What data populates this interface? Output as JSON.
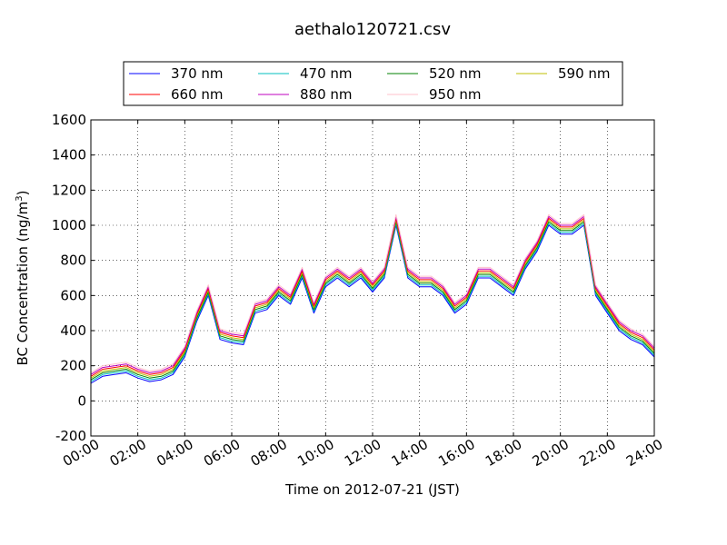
{
  "chart_data": {
    "type": "line",
    "title": "aethalo120721.csv",
    "xlabel": "Time on 2012-07-21 (JST)",
    "ylabel_main": "BC Concentration (ng/m",
    "ylabel_sup": "3",
    "ylabel_end": ")",
    "xlim": [
      0,
      24
    ],
    "ylim": [
      -200,
      1600
    ],
    "x_ticks": [
      0,
      2,
      4,
      6,
      8,
      10,
      12,
      14,
      16,
      18,
      20,
      22,
      24
    ],
    "x_tick_labels": [
      "00:00",
      "02:00",
      "04:00",
      "06:00",
      "08:00",
      "10:00",
      "12:00",
      "14:00",
      "16:00",
      "18:00",
      "20:00",
      "22:00",
      "24:00"
    ],
    "y_ticks": [
      -200,
      0,
      200,
      400,
      600,
      800,
      1000,
      1200,
      1400,
      1600
    ],
    "y_tick_labels": [
      "-200",
      "0",
      "200",
      "400",
      "600",
      "800",
      "1000",
      "1200",
      "1400",
      "1600"
    ],
    "grid": true,
    "legend_position": "top",
    "x_unit": "hour",
    "x": [
      0,
      0.5,
      1,
      1.5,
      2,
      2.5,
      3,
      3.5,
      4,
      4.5,
      5,
      5.5,
      6,
      6.5,
      7,
      7.5,
      8,
      8.5,
      9,
      9.5,
      10,
      10.5,
      11,
      11.5,
      12,
      12.5,
      13,
      13.5,
      14,
      14.5,
      15,
      15.5,
      16,
      16.5,
      17,
      17.5,
      18,
      18.5,
      19,
      19.5,
      20,
      20.5,
      21,
      21.5,
      22,
      22.5,
      23,
      23.5,
      24
    ],
    "series": [
      {
        "name": "370 nm",
        "color": "#0000ff",
        "values": [
          100,
          140,
          150,
          160,
          130,
          110,
          120,
          150,
          250,
          450,
          600,
          350,
          330,
          320,
          500,
          520,
          600,
          550,
          700,
          500,
          650,
          700,
          650,
          700,
          620,
          700,
          1000,
          700,
          650,
          650,
          600,
          500,
          550,
          700,
          700,
          650,
          600,
          750,
          850,
          1000,
          950,
          950,
          1000,
          600,
          500,
          400,
          350,
          320,
          250
        ]
      },
      {
        "name": "470 nm",
        "color": "#00bfbf",
        "values": [
          110,
          150,
          160,
          170,
          140,
          120,
          130,
          160,
          260,
          460,
          610,
          360,
          340,
          330,
          510,
          530,
          610,
          560,
          710,
          510,
          660,
          710,
          660,
          710,
          630,
          710,
          1010,
          710,
          660,
          660,
          610,
          510,
          560,
          710,
          710,
          660,
          610,
          760,
          860,
          1010,
          960,
          960,
          1010,
          610,
          510,
          410,
          360,
          330,
          260
        ]
      },
      {
        "name": "520 nm",
        "color": "#008000",
        "values": [
          120,
          160,
          170,
          180,
          150,
          130,
          140,
          170,
          270,
          470,
          620,
          370,
          350,
          340,
          520,
          540,
          620,
          570,
          720,
          520,
          670,
          720,
          670,
          720,
          640,
          720,
          1020,
          720,
          670,
          670,
          620,
          520,
          570,
          720,
          720,
          670,
          620,
          770,
          870,
          1020,
          970,
          970,
          1020,
          620,
          520,
          420,
          370,
          340,
          270
        ]
      },
      {
        "name": "590 nm",
        "color": "#bfbf00",
        "values": [
          130,
          170,
          180,
          190,
          160,
          140,
          150,
          180,
          280,
          480,
          630,
          380,
          360,
          350,
          530,
          550,
          630,
          580,
          730,
          530,
          680,
          730,
          680,
          730,
          650,
          730,
          1030,
          730,
          680,
          680,
          630,
          530,
          580,
          730,
          730,
          680,
          630,
          780,
          880,
          1030,
          980,
          980,
          1030,
          630,
          530,
          430,
          380,
          350,
          280
        ]
      },
      {
        "name": "660 nm",
        "color": "#ff0000",
        "values": [
          140,
          180,
          190,
          200,
          170,
          150,
          160,
          190,
          290,
          490,
          640,
          390,
          370,
          360,
          540,
          560,
          640,
          590,
          740,
          540,
          690,
          740,
          690,
          740,
          660,
          740,
          1040,
          740,
          690,
          690,
          640,
          540,
          590,
          740,
          740,
          690,
          640,
          790,
          890,
          1040,
          990,
          990,
          1040,
          640,
          540,
          440,
          390,
          360,
          290
        ]
      },
      {
        "name": "880 nm",
        "color": "#bf00bf",
        "values": [
          150,
          190,
          200,
          210,
          180,
          160,
          170,
          200,
          300,
          500,
          650,
          400,
          380,
          370,
          550,
          570,
          650,
          600,
          750,
          550,
          700,
          750,
          700,
          750,
          670,
          750,
          1050,
          750,
          700,
          700,
          650,
          550,
          600,
          750,
          750,
          700,
          650,
          800,
          900,
          1050,
          1000,
          1000,
          1050,
          650,
          550,
          450,
          400,
          370,
          300
        ]
      },
      {
        "name": "950 nm",
        "color": "#ffc0cb",
        "values": [
          160,
          200,
          210,
          220,
          190,
          170,
          180,
          210,
          310,
          510,
          660,
          410,
          390,
          380,
          560,
          580,
          660,
          610,
          760,
          560,
          710,
          760,
          710,
          760,
          680,
          760,
          1060,
          760,
          710,
          710,
          660,
          560,
          610,
          760,
          760,
          710,
          660,
          810,
          910,
          1060,
          1010,
          1010,
          1060,
          660,
          560,
          460,
          410,
          380,
          310
        ]
      }
    ]
  }
}
